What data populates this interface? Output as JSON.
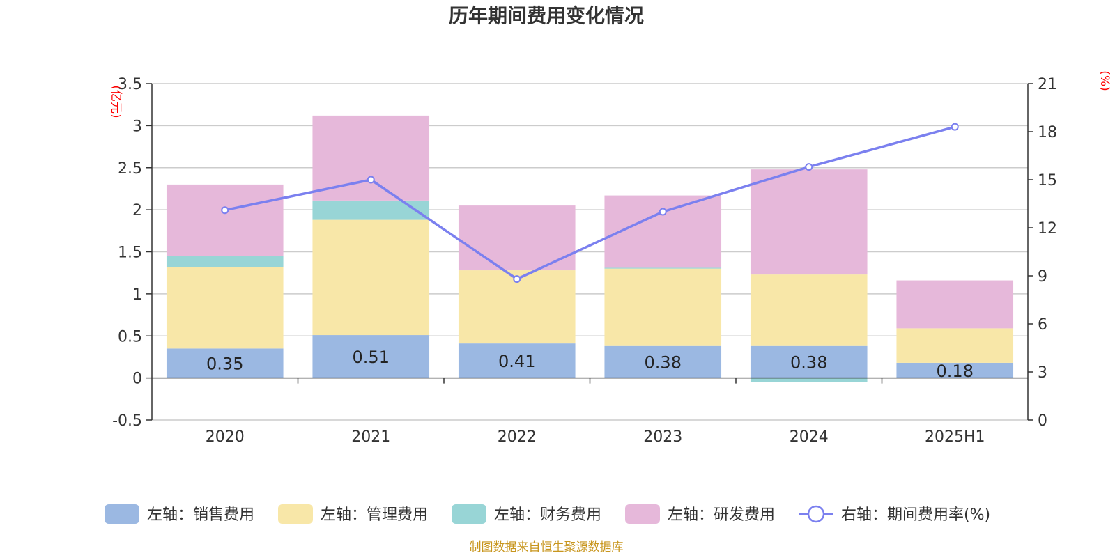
{
  "chart_data": {
    "type": "bar",
    "stacked": true,
    "title": "历年期间费用变化情况",
    "categories": [
      "2020",
      "2021",
      "2022",
      "2023",
      "2024",
      "2025H1"
    ],
    "left_axis": {
      "unit": "(亿元)",
      "ylim": [
        -0.5,
        3.5
      ],
      "ticks": [
        "-0.5",
        "0",
        "0.5",
        "1",
        "1.5",
        "2",
        "2.5",
        "3",
        "3.5"
      ]
    },
    "right_axis": {
      "unit": "(%)",
      "ylim": [
        0,
        21
      ],
      "ticks": [
        "0",
        "3",
        "6",
        "9",
        "12",
        "15",
        "18",
        "21"
      ]
    },
    "series": [
      {
        "name": "左轴：销售费用",
        "axis": "left",
        "kind": "bar",
        "color": "#9bb8e2",
        "values": [
          0.35,
          0.51,
          0.41,
          0.38,
          0.38,
          0.18
        ],
        "labels": [
          "0.35",
          "0.51",
          "0.41",
          "0.38",
          "0.38",
          "0.18"
        ]
      },
      {
        "name": "左轴：管理费用",
        "axis": "left",
        "kind": "bar",
        "color": "#f8e7a8",
        "values": [
          0.97,
          1.37,
          0.87,
          0.92,
          0.85,
          0.41
        ]
      },
      {
        "name": "左轴：财务费用",
        "axis": "left",
        "kind": "bar",
        "color": "#98d5d6",
        "values": [
          0.13,
          0.23,
          0.0,
          0.01,
          -0.05,
          0.0
        ]
      },
      {
        "name": "左轴：研发费用",
        "axis": "left",
        "kind": "bar",
        "color": "#e6b8da",
        "values": [
          0.85,
          1.01,
          0.77,
          0.86,
          1.25,
          0.57
        ]
      },
      {
        "name": "右轴：期间费用率(%)",
        "axis": "right",
        "kind": "line",
        "color": "#7b80ef",
        "values": [
          13.1,
          15.0,
          8.8,
          13.0,
          15.8,
          18.3
        ]
      }
    ],
    "grid": true,
    "legend_position": "bottom"
  },
  "footer": {
    "source": "制图数据来自恒生聚源数据库",
    "color": "#c8961e"
  }
}
